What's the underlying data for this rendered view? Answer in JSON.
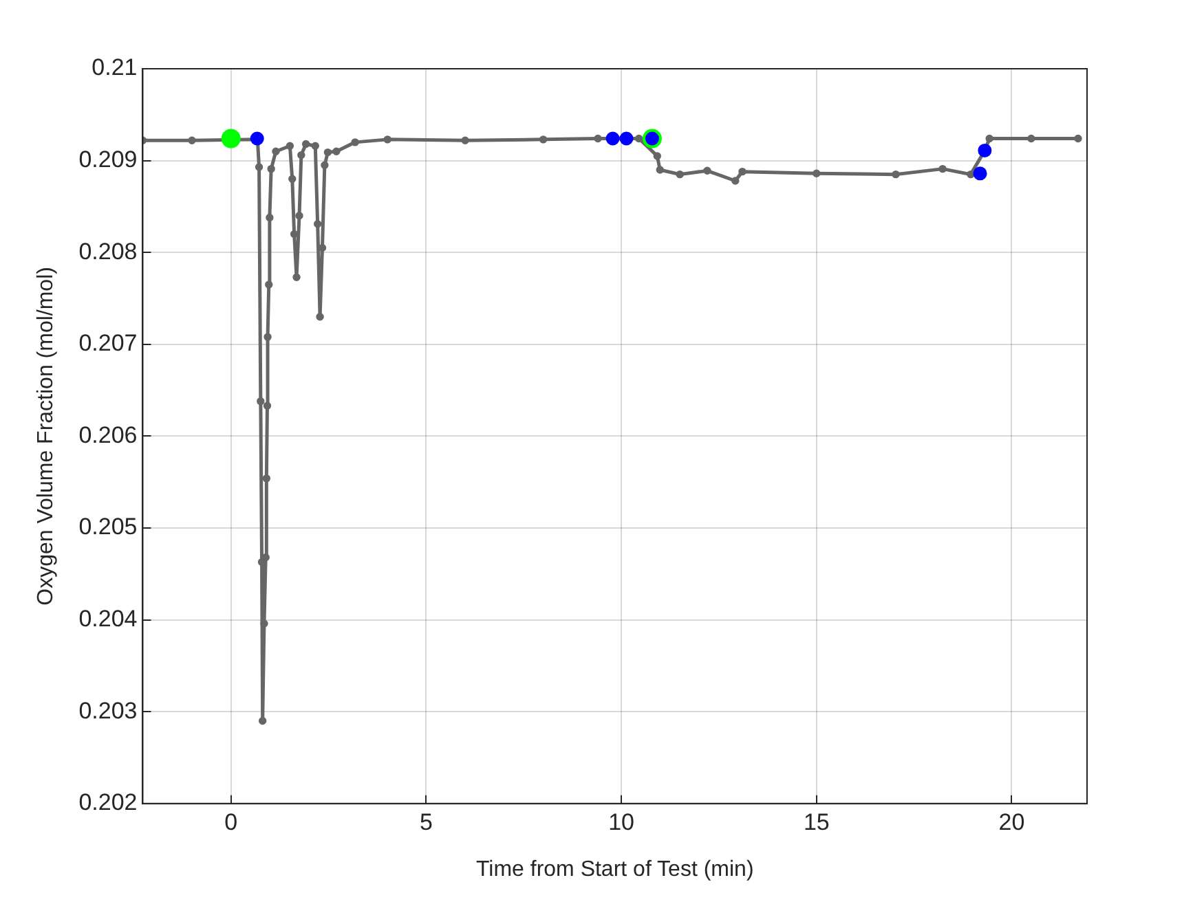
{
  "chart_data": {
    "type": "line",
    "xlabel": "Time from Start of Test (min)",
    "ylabel": "Oxygen Volume Fraction (mol/mol)",
    "xlim": [
      -2.26,
      21.93
    ],
    "xticks": [
      0,
      5,
      10,
      15,
      20
    ],
    "ylim": [
      0.202,
      0.21
    ],
    "yticks": [
      0.202,
      0.203,
      0.204,
      0.205,
      0.206,
      0.207,
      0.208,
      0.209,
      0.21
    ],
    "grid": true,
    "marker": "circle",
    "line_style": "solid",
    "series": [
      {
        "type": "line",
        "color": "#666666",
        "x": [
          -2.26,
          -1.0,
          0.68,
          0.72,
          0.76,
          0.79,
          0.81,
          0.85,
          0.89,
          0.91,
          0.93,
          0.94,
          0.97,
          0.99,
          1.03,
          1.15,
          1.51,
          1.57,
          1.62,
          1.68,
          1.75,
          1.8,
          1.92,
          2.16,
          2.22,
          2.28,
          2.34,
          2.4,
          2.48,
          2.7,
          3.18,
          4.01,
          6,
          8,
          9.4,
          10.45,
          10.92,
          10.99,
          11.5,
          12.2,
          12.92,
          13.1,
          15,
          17.03,
          18.23,
          18.95,
          19.31,
          19.43,
          20.5,
          21.7
        ],
        "values": [
          0.20922,
          0.20922,
          0.20923,
          0.20893,
          0.20638,
          0.20463,
          0.2029,
          0.20396,
          0.20468,
          0.20554,
          0.20633,
          0.20708,
          0.20765,
          0.20838,
          0.20891,
          0.2091,
          0.20916,
          0.2088,
          0.2082,
          0.20773,
          0.2084,
          0.20906,
          0.20918,
          0.20916,
          0.20831,
          0.2073,
          0.20805,
          0.20895,
          0.20909,
          0.2091,
          0.2092,
          0.20923,
          0.20922,
          0.20923,
          0.20924,
          0.20924,
          0.20905,
          0.2089,
          0.20885,
          0.20889,
          0.20878,
          0.20888,
          0.20886,
          0.20885,
          0.20891,
          0.20885,
          0.20911,
          0.20924,
          0.20924,
          0.20924
        ]
      },
      {
        "type": "scatter",
        "color": "#00ff00",
        "x": [
          0,
          10.79
        ],
        "values": [
          0.20924,
          0.20924
        ]
      },
      {
        "type": "scatter",
        "color": "#0000ff",
        "x": [
          0.67,
          9.78,
          10.13,
          10.79,
          19.19,
          19.31
        ],
        "values": [
          0.20924,
          0.20924,
          0.20924,
          0.20924,
          0.20886,
          0.20911
        ]
      }
    ]
  }
}
